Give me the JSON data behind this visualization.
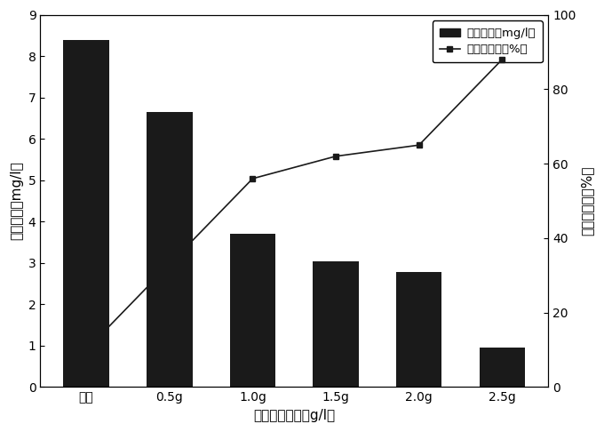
{
  "categories": [
    "原水",
    "0.5g",
    "1.0g",
    "1.5g",
    "2.0g",
    "2.5g"
  ],
  "bar_values": [
    8.4,
    6.65,
    3.7,
    3.05,
    2.78,
    0.95
  ],
  "line_values": [
    10,
    33,
    56,
    62,
    65,
    88
  ],
  "bar_color": "#1a1a1a",
  "line_color": "#1a1a1a",
  "bar_label": "氨氮含量（mg/l）",
  "line_label": "氨氮去除率（%）",
  "ylabel_left": "氨氮含量（mg/l）",
  "ylabel_right": "氨氮去除率（%）",
  "xlabel": "复合材料用量（g/l）",
  "ylim_left": [
    0,
    9
  ],
  "ylim_right": [
    0,
    100
  ],
  "yticks_left": [
    0,
    1,
    2,
    3,
    4,
    5,
    6,
    7,
    8,
    9
  ],
  "yticks_right": [
    0,
    20,
    40,
    60,
    80,
    100
  ],
  "background_color": "#ffffff",
  "figsize": [
    6.8,
    4.86
  ],
  "dpi": 100
}
